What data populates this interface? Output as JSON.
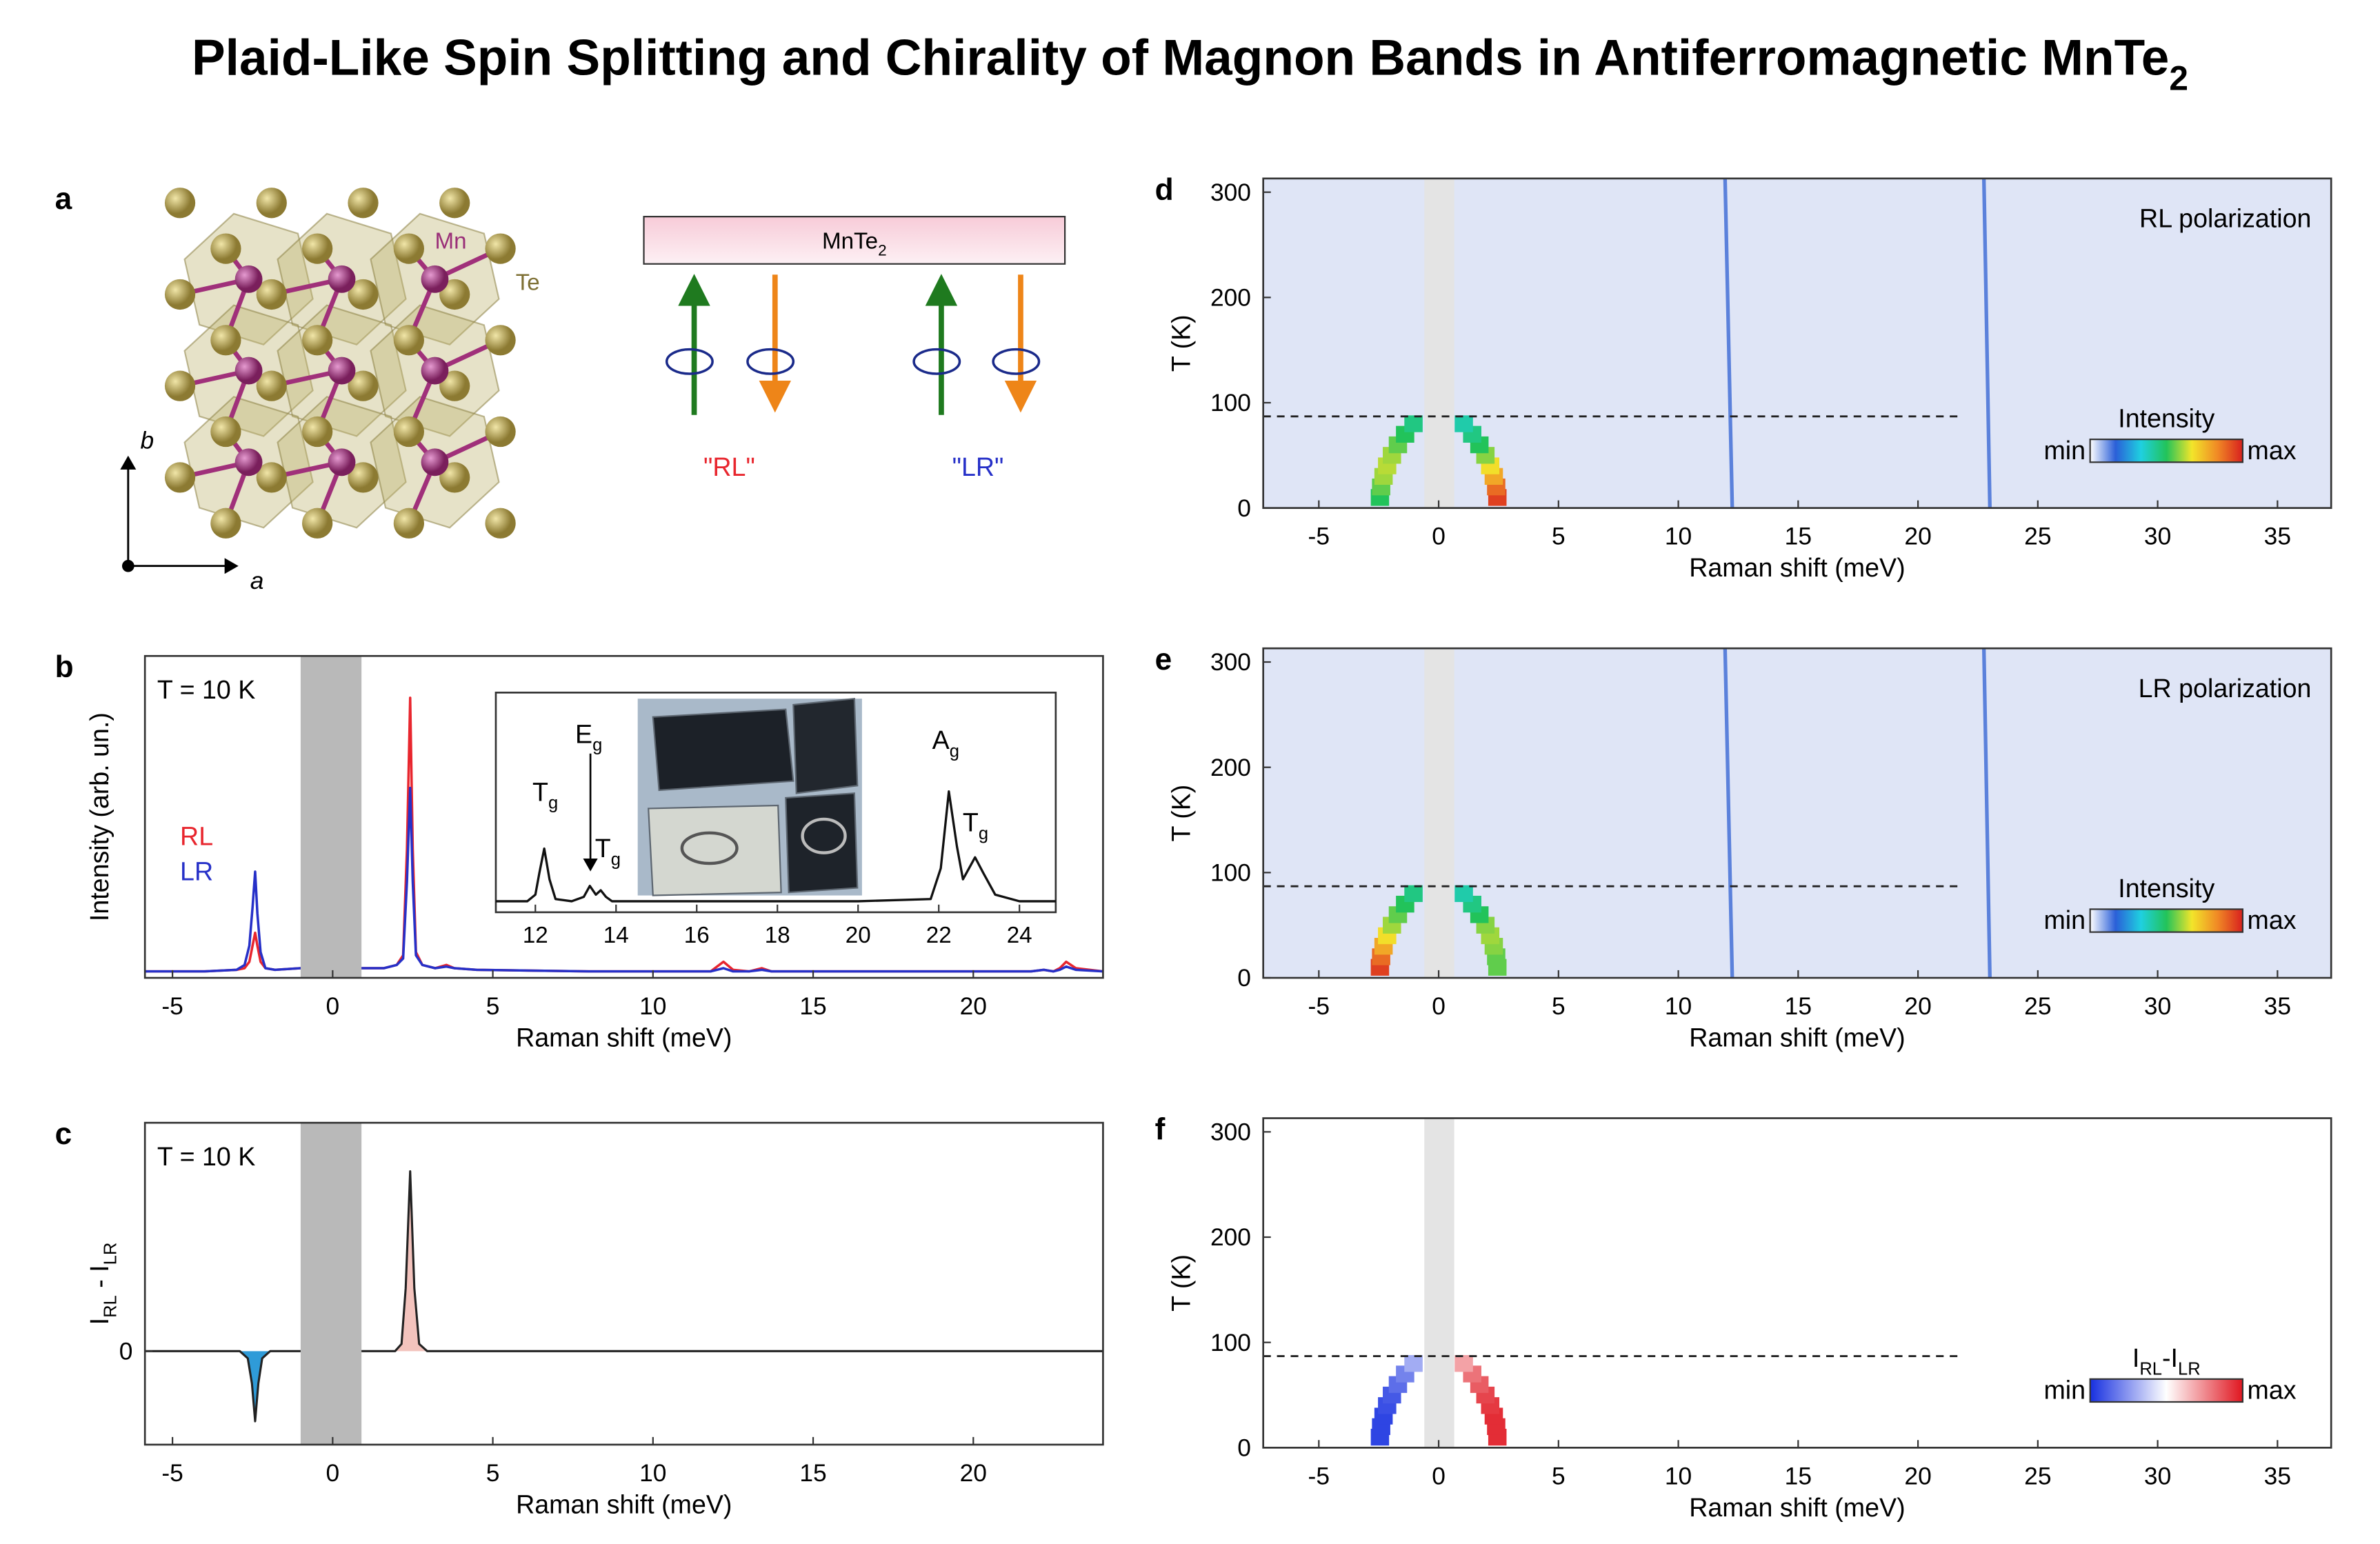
{
  "title": [
    {
      "text": "Plaid-Like Spin Splitting and Chirality of Magnon Bands in Antiferromagnetic MnTe"
    },
    {
      "sub": "2"
    }
  ],
  "panel_a": {
    "label": "a",
    "crystal": {
      "mn_label": "Mn",
      "te_label": "Te",
      "axis_a": "a",
      "axis_b": "b"
    },
    "setup": {
      "sample": [
        {
          "text": "MnTe"
        },
        {
          "sub": "2"
        }
      ],
      "rl": "\"RL\"",
      "lr": "\"LR\"",
      "rl_color": "#e8262e",
      "lr_color": "#2630c8"
    }
  },
  "chart_data": [
    {
      "panel": "b",
      "type": "line",
      "annotation": "T = 10 K",
      "x_label": "Raman shift (meV)",
      "y_label": "Intensity (arb. un.)",
      "xlim": [
        -5.86,
        24.05
      ],
      "ylim": [
        0,
        1
      ],
      "xticks": [
        -5,
        0,
        5,
        10,
        15,
        20
      ],
      "excluded_band": [
        -1,
        0.9
      ],
      "band_color": "#b9b9b9",
      "x": [
        -5.86,
        -4,
        -3.0,
        -2.75,
        -2.6,
        -2.5,
        -2.42,
        -2.35,
        -2.25,
        -2.1,
        -1.8,
        -1.0,
        0,
        0.9,
        1.6,
        2.0,
        2.2,
        2.32,
        2.42,
        2.5,
        2.6,
        2.8,
        3.2,
        3.55,
        3.8,
        4.5,
        8,
        11.8,
        12.2,
        12.5,
        13.0,
        13.4,
        13.7,
        14.0,
        18,
        21.8,
        22.2,
        22.5,
        22.7,
        22.9,
        23.2,
        24.05
      ],
      "series": [
        {
          "name": "RL",
          "color": "#e8262e",
          "values": [
            0.02,
            0.02,
            0.025,
            0.03,
            0.05,
            0.1,
            0.14,
            0.1,
            0.05,
            0.03,
            0.025,
            0.03,
            0.03,
            0.03,
            0.03,
            0.04,
            0.07,
            0.4,
            0.87,
            0.4,
            0.08,
            0.04,
            0.03,
            0.04,
            0.03,
            0.025,
            0.02,
            0.02,
            0.05,
            0.025,
            0.02,
            0.03,
            0.02,
            0.02,
            0.02,
            0.02,
            0.025,
            0.02,
            0.03,
            0.05,
            0.03,
            0.02
          ]
        },
        {
          "name": "LR",
          "color": "#2630c8",
          "values": [
            0.02,
            0.02,
            0.025,
            0.04,
            0.1,
            0.22,
            0.33,
            0.2,
            0.08,
            0.03,
            0.025,
            0.03,
            0.03,
            0.03,
            0.03,
            0.04,
            0.06,
            0.3,
            0.59,
            0.3,
            0.07,
            0.04,
            0.03,
            0.035,
            0.03,
            0.025,
            0.02,
            0.02,
            0.03,
            0.02,
            0.02,
            0.025,
            0.02,
            0.02,
            0.02,
            0.02,
            0.025,
            0.02,
            0.025,
            0.035,
            0.025,
            0.02
          ]
        }
      ],
      "inset": {
        "type": "line",
        "xlim": [
          11.02,
          24.9
        ],
        "ylim": [
          0,
          1
        ],
        "xticks": [
          12,
          14,
          16,
          18,
          20,
          22,
          24
        ],
        "color": "#111111",
        "x": [
          11.02,
          11.8,
          12.0,
          12.1,
          12.22,
          12.35,
          12.5,
          12.9,
          13.2,
          13.35,
          13.5,
          13.62,
          13.75,
          13.9,
          14.5,
          17,
          20,
          21.8,
          22.05,
          22.25,
          22.45,
          22.6,
          22.75,
          22.9,
          23.1,
          23.4,
          24,
          24.9
        ],
        "values": [
          0.05,
          0.05,
          0.08,
          0.18,
          0.29,
          0.15,
          0.06,
          0.05,
          0.07,
          0.12,
          0.08,
          0.1,
          0.07,
          0.05,
          0.05,
          0.05,
          0.05,
          0.06,
          0.2,
          0.55,
          0.3,
          0.15,
          0.2,
          0.25,
          0.18,
          0.08,
          0.05,
          0.05
        ],
        "annotations": [
          [
            {
              "text": "T"
            },
            {
              "sub": "g"
            }
          ],
          [
            {
              "text": "E"
            },
            {
              "sub": "g"
            }
          ],
          [
            {
              "text": "T"
            },
            {
              "sub": "g"
            }
          ],
          [
            {
              "text": "A"
            },
            {
              "sub": "g"
            }
          ],
          [
            {
              "text": "T"
            },
            {
              "sub": "g"
            }
          ]
        ]
      }
    },
    {
      "panel": "c",
      "type": "line",
      "annotation": "T = 10 K",
      "x_label": "Raman shift (meV)",
      "y_label": [
        {
          "text": "I"
        },
        {
          "sub": "RL"
        },
        {
          "text": " - I"
        },
        {
          "sub": "LR"
        }
      ],
      "xlim": [
        -5.86,
        24.05
      ],
      "ylim": [
        -0.52,
        1.27
      ],
      "xticks": [
        -5,
        0,
        5,
        10,
        15,
        20
      ],
      "yticks": [
        0
      ],
      "excluded_band": [
        -1,
        0.9
      ],
      "band_color": "#b9b9b9",
      "color": "#222222",
      "fill_negative": "#2f9bd8",
      "fill_positive": "#f3c3bd",
      "x": [
        -5.86,
        -2.9,
        -2.65,
        -2.52,
        -2.42,
        -2.32,
        -2.2,
        -1.95,
        0,
        1.95,
        2.15,
        2.28,
        2.42,
        2.55,
        2.7,
        2.95,
        24.05
      ],
      "values": [
        0,
        0,
        -0.04,
        -0.18,
        -0.39,
        -0.18,
        -0.04,
        0,
        0,
        0,
        0.04,
        0.35,
        1.0,
        0.35,
        0.04,
        0,
        0
      ]
    },
    {
      "panel": "d",
      "type": "heatmap",
      "annotation": "RL polarization",
      "x_label": "Raman shift (meV)",
      "y_label": "T (K)",
      "xlim": [
        -7.32,
        37.24
      ],
      "ylim": [
        0,
        313
      ],
      "xticks": [
        -5,
        0,
        5,
        10,
        15,
        20,
        25,
        30,
        35
      ],
      "yticks": [
        0,
        100,
        200,
        300
      ],
      "background": "#dfe5f6",
      "excluded_band": [
        -0.6,
        0.65
      ],
      "band_color": "#e4e4e4",
      "neel_T": 87,
      "neel_line_xmax": 21.8,
      "phonon_color": "#3a68d4",
      "phonon_lines": [
        {
          "T": [
            0,
            313
          ],
          "energy": [
            12.25,
            11.95
          ]
        },
        {
          "T": [
            0,
            313
          ],
          "energy": [
            23.0,
            22.75
          ]
        }
      ],
      "magnon_T": [
        10,
        20,
        30,
        40,
        50,
        60,
        70,
        80
      ],
      "magnon_branches": [
        {
          "energy": [
            -2.45,
            -2.4,
            -2.3,
            -2.15,
            -1.95,
            -1.7,
            -1.4,
            -1.05
          ],
          "intensity": [
            0.5,
            0.55,
            0.6,
            0.62,
            0.6,
            0.55,
            0.5,
            0.45
          ]
        },
        {
          "energy": [
            2.45,
            2.4,
            2.3,
            2.15,
            1.95,
            1.7,
            1.4,
            1.05
          ],
          "intensity": [
            0.95,
            0.88,
            0.78,
            0.68,
            0.58,
            0.5,
            0.45,
            0.4
          ]
        }
      ],
      "colormap": [
        "#ffffff",
        "#2a5fd8",
        "#1fd0e0",
        "#22c35a",
        "#f2e52a",
        "#f08a25",
        "#d8201e"
      ],
      "color_range": [
        0,
        1
      ],
      "colorbar": {
        "title": [
          {
            "text": "Intensity"
          }
        ],
        "min_label": "min",
        "max_label": "max"
      }
    },
    {
      "panel": "e",
      "type": "heatmap",
      "annotation": "LR polarization",
      "x_label": "Raman shift (meV)",
      "y_label": "T (K)",
      "xlim": [
        -7.32,
        37.24
      ],
      "ylim": [
        0,
        313
      ],
      "xticks": [
        -5,
        0,
        5,
        10,
        15,
        20,
        25,
        30,
        35
      ],
      "yticks": [
        0,
        100,
        200,
        300
      ],
      "background": "#dfe5f6",
      "excluded_band": [
        -0.6,
        0.65
      ],
      "band_color": "#e4e4e4",
      "neel_T": 87,
      "neel_line_xmax": 21.8,
      "phonon_color": "#3a68d4",
      "phonon_lines": [
        {
          "T": [
            0,
            313
          ],
          "energy": [
            12.25,
            11.95
          ]
        },
        {
          "T": [
            0,
            313
          ],
          "energy": [
            23.0,
            22.75
          ]
        }
      ],
      "magnon_T": [
        10,
        20,
        30,
        40,
        50,
        60,
        70,
        80
      ],
      "magnon_branches": [
        {
          "energy": [
            -2.45,
            -2.4,
            -2.3,
            -2.15,
            -1.95,
            -1.7,
            -1.4,
            -1.05
          ],
          "intensity": [
            0.95,
            0.88,
            0.78,
            0.68,
            0.6,
            0.55,
            0.5,
            0.45
          ]
        },
        {
          "energy": [
            2.45,
            2.4,
            2.3,
            2.15,
            1.95,
            1.7,
            1.4,
            1.05
          ],
          "intensity": [
            0.55,
            0.55,
            0.58,
            0.6,
            0.58,
            0.5,
            0.45,
            0.4
          ]
        }
      ],
      "colormap": [
        "#ffffff",
        "#2a5fd8",
        "#1fd0e0",
        "#22c35a",
        "#f2e52a",
        "#f08a25",
        "#d8201e"
      ],
      "color_range": [
        0,
        1
      ],
      "colorbar": {
        "title": [
          {
            "text": "Intensity"
          }
        ],
        "min_label": "min",
        "max_label": "max"
      }
    },
    {
      "panel": "f",
      "type": "heatmap",
      "x_label": "Raman shift (meV)",
      "y_label": "T (K)",
      "xlim": [
        -7.32,
        37.24
      ],
      "ylim": [
        0,
        313
      ],
      "xticks": [
        -5,
        0,
        5,
        10,
        15,
        20,
        25,
        30,
        35
      ],
      "yticks": [
        0,
        100,
        200,
        300
      ],
      "background": "#ffffff",
      "excluded_band": [
        -0.6,
        0.65
      ],
      "band_color": "#e4e4e4",
      "neel_T": 87,
      "neel_line_xmax": 21.8,
      "magnon_T": [
        10,
        20,
        30,
        40,
        50,
        60,
        70,
        80
      ],
      "magnon_branches": [
        {
          "energy": [
            -2.45,
            -2.4,
            -2.3,
            -2.15,
            -1.95,
            -1.7,
            -1.4,
            -1.05
          ],
          "intensity": [
            -0.9,
            -0.9,
            -0.9,
            -0.85,
            -0.8,
            -0.7,
            -0.6,
            -0.4
          ]
        },
        {
          "energy": [
            2.45,
            2.4,
            2.3,
            2.15,
            1.95,
            1.7,
            1.4,
            1.05
          ],
          "intensity": [
            0.9,
            0.9,
            0.9,
            0.85,
            0.8,
            0.7,
            0.6,
            0.4
          ]
        }
      ],
      "colormap": [
        "#1730e0",
        "#ffffff",
        "#e01620"
      ],
      "color_range": [
        -1,
        1
      ],
      "colorbar": {
        "title": [
          {
            "text": "I"
          },
          {
            "sub": "RL"
          },
          {
            "text": "-I"
          },
          {
            "sub": "LR"
          }
        ],
        "min_label": "min",
        "max_label": "max"
      }
    }
  ]
}
